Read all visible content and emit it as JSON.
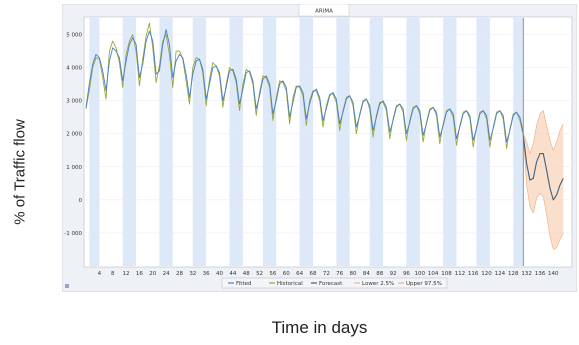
{
  "chart_data": {
    "type": "line",
    "title": "ARIMA",
    "xlabel": "Time in days",
    "ylabel": "% of Traffic flow",
    "xlim": [
      0,
      145
    ],
    "ylim": [
      -2000,
      5500
    ],
    "x_ticks": [
      4,
      8,
      12,
      16,
      20,
      24,
      28,
      32,
      36,
      40,
      44,
      48,
      52,
      56,
      60,
      64,
      68,
      72,
      76,
      80,
      84,
      88,
      92,
      96,
      100,
      104,
      108,
      112,
      116,
      120,
      124,
      128,
      132,
      136,
      140
    ],
    "y_ticks": [
      -1000,
      0,
      1000,
      2000,
      3000,
      4000,
      5000
    ],
    "y_tick_labels": [
      "-1 000",
      "0",
      "1 000",
      "2 000",
      "3 000",
      "4 000",
      "5 000"
    ],
    "forecast_start": 131,
    "legend": {
      "placement": "bottom",
      "entries": [
        {
          "label": "Fitted",
          "color": "#4a7fc8"
        },
        {
          "label": "Historical",
          "color": "#9aa83a"
        },
        {
          "label": "Forecast",
          "color": "#3f5f7c"
        },
        {
          "label": "Lower 2.5%",
          "color": "#f0b48a"
        },
        {
          "label": "Upper 97.5%",
          "color": "#f0b48a"
        }
      ]
    },
    "shaded_bands": [
      [
        1,
        4
      ],
      [
        11,
        15
      ],
      [
        22,
        26
      ],
      [
        32,
        36
      ],
      [
        43,
        47
      ],
      [
        53,
        57
      ],
      [
        64,
        68
      ],
      [
        75,
        79
      ],
      [
        85,
        89
      ],
      [
        96,
        100
      ],
      [
        107,
        111
      ],
      [
        117,
        121
      ],
      [
        128,
        131
      ]
    ],
    "historical": {
      "x": [
        0,
        1,
        2,
        3,
        4,
        5,
        6,
        7,
        8,
        9,
        10,
        11,
        12,
        13,
        14,
        15,
        16,
        17,
        18,
        19,
        20,
        21,
        22,
        23,
        24,
        25,
        26,
        27,
        28,
        29,
        30,
        31,
        32,
        33,
        34,
        35,
        36,
        37,
        38,
        39,
        40,
        41,
        42,
        43,
        44,
        45,
        46,
        47,
        48,
        49,
        50,
        51,
        52,
        53,
        54,
        55,
        56,
        57,
        58,
        59,
        60,
        61,
        62,
        63,
        64,
        65,
        66,
        67,
        68,
        69,
        70,
        71,
        72,
        73,
        74,
        75,
        76,
        77,
        78,
        79,
        80,
        81,
        82,
        83,
        84,
        85,
        86,
        87,
        88,
        89,
        90,
        91,
        92,
        93,
        94,
        95,
        96,
        97,
        98,
        99,
        100,
        101,
        102,
        103,
        104,
        105,
        106,
        107,
        108,
        109,
        110,
        111,
        112,
        113,
        114,
        115,
        116,
        117,
        118,
        119,
        120,
        121,
        122,
        123,
        124,
        125,
        126,
        127,
        128,
        129,
        130,
        131
      ],
      "values": [
        2750,
        3300,
        4000,
        4300,
        4250,
        3700,
        3050,
        4500,
        4800,
        4600,
        4150,
        3400,
        4400,
        4800,
        5000,
        4500,
        3450,
        4250,
        4950,
        5350,
        4600,
        3550,
        4050,
        4800,
        5000,
        4400,
        3400,
        4500,
        4500,
        4250,
        3600,
        2900,
        4000,
        4300,
        4250,
        3850,
        2850,
        3650,
        4150,
        4050,
        3750,
        2800,
        3500,
        4000,
        3900,
        3550,
        2700,
        3500,
        3950,
        3850,
        3500,
        2550,
        3250,
        3750,
        3700,
        3400,
        2400,
        3100,
        3600,
        3550,
        3300,
        2300,
        3100,
        3450,
        3400,
        3150,
        2250,
        3000,
        3300,
        3300,
        3000,
        2200,
        2850,
        3200,
        3200,
        2950,
        2100,
        2700,
        3100,
        3150,
        2850,
        2000,
        2600,
        3000,
        3050,
        2750,
        1900,
        2550,
        2950,
        2950,
        2700,
        1850,
        2450,
        2850,
        2900,
        2650,
        1800,
        2400,
        2800,
        2850,
        2600,
        1750,
        2350,
        2750,
        2800,
        2550,
        1700,
        2300,
        2700,
        2750,
        2500,
        1650,
        2250,
        2650,
        2700,
        2450,
        1600,
        2200,
        2650,
        2700,
        2450,
        1600,
        2200,
        2650,
        2700,
        2450,
        1550,
        2150,
        2600,
        2650,
        2400,
        1950
      ]
    },
    "fitted": {
      "x": [
        0,
        1,
        2,
        3,
        4,
        5,
        6,
        7,
        8,
        9,
        10,
        11,
        12,
        13,
        14,
        15,
        16,
        17,
        18,
        19,
        20,
        21,
        22,
        23,
        24,
        25,
        26,
        27,
        28,
        29,
        30,
        31,
        32,
        33,
        34,
        35,
        36,
        37,
        38,
        39,
        40,
        41,
        42,
        43,
        44,
        45,
        46,
        47,
        48,
        49,
        50,
        51,
        52,
        53,
        54,
        55,
        56,
        57,
        58,
        59,
        60,
        61,
        62,
        63,
        64,
        65,
        66,
        67,
        68,
        69,
        70,
        71,
        72,
        73,
        74,
        75,
        76,
        77,
        78,
        79,
        80,
        81,
        82,
        83,
        84,
        85,
        86,
        87,
        88,
        89,
        90,
        91,
        92,
        93,
        94,
        95,
        96,
        97,
        98,
        99,
        100,
        101,
        102,
        103,
        104,
        105,
        106,
        107,
        108,
        109,
        110,
        111,
        112,
        113,
        114,
        115,
        116,
        117,
        118,
        119,
        120,
        121,
        122,
        123,
        124,
        125,
        126,
        127,
        128,
        129,
        130,
        131
      ],
      "values": [
        2800,
        3500,
        4100,
        4400,
        4300,
        3900,
        3300,
        4200,
        4600,
        4500,
        4300,
        3600,
        4200,
        4700,
        4900,
        4700,
        3700,
        4100,
        4800,
        5100,
        4800,
        3800,
        3900,
        4700,
        5150,
        4700,
        3700,
        4200,
        4400,
        4300,
        3800,
        3100,
        3800,
        4200,
        4250,
        3950,
        3050,
        3500,
        4000,
        4050,
        3850,
        3000,
        3400,
        3900,
        3950,
        3650,
        2900,
        3350,
        3850,
        3900,
        3600,
        2750,
        3150,
        3650,
        3750,
        3500,
        2600,
        3000,
        3500,
        3600,
        3400,
        2500,
        2950,
        3400,
        3450,
        3250,
        2450,
        2900,
        3250,
        3350,
        3100,
        2400,
        2750,
        3150,
        3250,
        3050,
        2300,
        2650,
        3050,
        3150,
        2950,
        2200,
        2550,
        2950,
        3050,
        2850,
        2100,
        2500,
        2900,
        3000,
        2800,
        2050,
        2400,
        2800,
        2900,
        2750,
        2000,
        2350,
        2750,
        2850,
        2700,
        1950,
        2300,
        2700,
        2800,
        2650,
        1900,
        2250,
        2650,
        2750,
        2600,
        1850,
        2200,
        2600,
        2700,
        2550,
        1800,
        2150,
        2600,
        2700,
        2550,
        1800,
        2150,
        2600,
        2700,
        2550,
        1750,
        2100,
        2550,
        2650,
        2500,
        2050
      ]
    },
    "forecast": {
      "x": [
        131,
        132,
        133,
        134,
        135,
        136,
        137,
        138,
        139,
        140,
        141,
        142,
        143
      ],
      "values": [
        1950,
        1100,
        600,
        650,
        1150,
        1400,
        1400,
        900,
        350,
        0,
        150,
        450,
        650
      ]
    },
    "lower": {
      "x": [
        131,
        132,
        133,
        134,
        135,
        136,
        137,
        138,
        139,
        140,
        141,
        142,
        143
      ],
      "values": [
        1900,
        450,
        -200,
        -400,
        50,
        200,
        100,
        -450,
        -1100,
        -1500,
        -1450,
        -1200,
        -1000
      ]
    },
    "upper": {
      "x": [
        131,
        132,
        133,
        134,
        135,
        136,
        137,
        138,
        139,
        140,
        141,
        142,
        143
      ],
      "values": [
        2000,
        1750,
        1400,
        1700,
        2250,
        2600,
        2700,
        2250,
        1800,
        1500,
        1750,
        2100,
        2300
      ]
    }
  }
}
